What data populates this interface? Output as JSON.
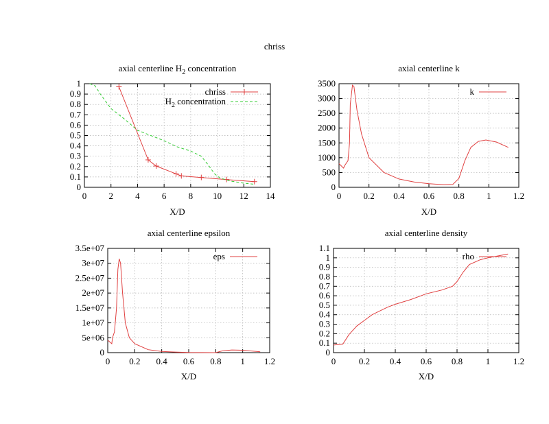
{
  "title": "chriss",
  "chart_data": [
    {
      "type": "line",
      "title_parts": [
        "axial centerline H",
        "2",
        " concentration"
      ],
      "xlabel": "X/D",
      "ylabel": "",
      "xlim": [
        0,
        14
      ],
      "ylim": [
        0,
        1
      ],
      "xticks": [
        0,
        2,
        4,
        6,
        8,
        10,
        12,
        14
      ],
      "xtick_labels": [
        "0",
        "2",
        "4",
        "6",
        "8",
        "10",
        "12",
        "14"
      ],
      "yticks": [
        0,
        0.1,
        0.2,
        0.3,
        0.4,
        0.5,
        0.6,
        0.7,
        0.8,
        0.9,
        1
      ],
      "ytick_labels": [
        "0",
        "0.1",
        "0.2",
        "0.3",
        "0.4",
        "0.5",
        "0.6",
        "0.7",
        "0.8",
        "0.9",
        "1"
      ],
      "grid": true,
      "legend": "top-right",
      "series": [
        {
          "name": "chriss",
          "label_parts": [
            "chriss"
          ],
          "color": "#e04040",
          "style": "linespoints",
          "marker": "plus",
          "x": [
            2.6,
            4.8,
            5.4,
            6.9,
            7.3,
            8.8,
            10.7,
            12.8
          ],
          "y": [
            0.97,
            0.265,
            0.205,
            0.13,
            0.11,
            0.095,
            0.075,
            0.055
          ]
        },
        {
          "name": "H2 concentration",
          "label_parts": [
            "H",
            "2",
            " concentration"
          ],
          "color": "#33cc33",
          "style": "dashed",
          "x": [
            0.4,
            0.8,
            1.2,
            2,
            3,
            4,
            5,
            6,
            7,
            8,
            8.8,
            9.3,
            9.8,
            10.2,
            11,
            12,
            12.8
          ],
          "y": [
            1,
            0.98,
            0.9,
            0.76,
            0.66,
            0.55,
            0.5,
            0.45,
            0.39,
            0.35,
            0.3,
            0.22,
            0.13,
            0.09,
            0.06,
            0.04,
            0.03
          ]
        }
      ]
    },
    {
      "type": "line",
      "title_parts": [
        "axial centerline k"
      ],
      "xlabel": "X/D",
      "ylabel": "",
      "xlim": [
        0,
        1.2
      ],
      "ylim": [
        0,
        3500
      ],
      "xticks": [
        0,
        0.2,
        0.4,
        0.6,
        0.8,
        1,
        1.2
      ],
      "xtick_labels": [
        "0",
        "0.2",
        "0.4",
        "0.6",
        "0.8",
        "1",
        "1.2"
      ],
      "yticks": [
        0,
        500,
        1000,
        1500,
        2000,
        2500,
        3000,
        3500
      ],
      "ytick_labels": [
        "0",
        "500",
        "1000",
        "1500",
        "2000",
        "2500",
        "3000",
        "3500"
      ],
      "grid": true,
      "legend": "top-right",
      "series": [
        {
          "name": "k",
          "label_parts": [
            "k"
          ],
          "color": "#e04040",
          "style": "line",
          "x": [
            0,
            0.03,
            0.04,
            0.06,
            0.07,
            0.075,
            0.09,
            0.1,
            0.12,
            0.15,
            0.2,
            0.3,
            0.4,
            0.5,
            0.6,
            0.7,
            0.76,
            0.8,
            0.84,
            0.88,
            0.93,
            0.98,
            1.05,
            1.13
          ],
          "y": [
            800,
            650,
            750,
            900,
            1500,
            2800,
            3450,
            3400,
            2600,
            1800,
            1000,
            500,
            280,
            180,
            120,
            90,
            100,
            300,
            900,
            1350,
            1550,
            1600,
            1530,
            1350
          ]
        }
      ]
    },
    {
      "type": "line",
      "title_parts": [
        "axial centerline epsilon"
      ],
      "xlabel": "X/D",
      "ylabel": "",
      "xlim": [
        0,
        1.2
      ],
      "ylim": [
        0,
        35000000
      ],
      "xticks": [
        0,
        0.2,
        0.4,
        0.6,
        0.8,
        1,
        1.2
      ],
      "xtick_labels": [
        "0",
        "0.2",
        "0.4",
        "0.6",
        "0.8",
        "1",
        "1.2"
      ],
      "yticks": [
        0,
        5000000,
        10000000,
        15000000,
        20000000,
        25000000,
        30000000,
        35000000
      ],
      "ytick_labels": [
        "0",
        "5e+06",
        "1e+07",
        "1.5e+07",
        "2e+07",
        "2.5e+07",
        "3e+07",
        "3.5e+07"
      ],
      "grid": true,
      "legend": "top-right",
      "series": [
        {
          "name": "eps",
          "label_parts": [
            "eps"
          ],
          "color": "#e04040",
          "style": "line",
          "x": [
            0,
            0.03,
            0.035,
            0.05,
            0.065,
            0.075,
            0.085,
            0.095,
            0.11,
            0.13,
            0.16,
            0.2,
            0.3,
            0.4,
            0.5,
            0.6,
            0.8,
            0.85,
            0.92,
            1.0,
            1.13
          ],
          "y": [
            4200000,
            3000000,
            5000000,
            7000000,
            15000000,
            28000000,
            31500000,
            30000000,
            20000000,
            10000000,
            5000000,
            3000000,
            1000000,
            400000,
            200000,
            50000,
            0,
            600000,
            900000,
            800000,
            300000
          ]
        }
      ]
    },
    {
      "type": "line",
      "title_parts": [
        "axial centerline density"
      ],
      "xlabel": "X/D",
      "ylabel": "",
      "xlim": [
        0,
        1.2
      ],
      "ylim": [
        0,
        1.1
      ],
      "xticks": [
        0,
        0.2,
        0.4,
        0.6,
        0.8,
        1,
        1.2
      ],
      "xtick_labels": [
        "0",
        "0.2",
        "0.4",
        "0.6",
        "0.8",
        "1",
        "1.2"
      ],
      "yticks": [
        0,
        0.1,
        0.2,
        0.3,
        0.4,
        0.5,
        0.6,
        0.7,
        0.8,
        0.9,
        1,
        1.1
      ],
      "ytick_labels": [
        "0",
        "0.1",
        "0.2",
        "0.3",
        "0.4",
        "0.5",
        "0.6",
        "0.7",
        "0.8",
        "0.9",
        "1",
        "1.1"
      ],
      "grid": true,
      "legend": "top-right",
      "series": [
        {
          "name": "rho",
          "label_parts": [
            "rho"
          ],
          "color": "#e04040",
          "style": "line",
          "x": [
            0,
            0.06,
            0.1,
            0.15,
            0.2,
            0.25,
            0.3,
            0.35,
            0.4,
            0.5,
            0.6,
            0.7,
            0.77,
            0.8,
            0.84,
            0.88,
            0.95,
            1,
            1.13
          ],
          "y": [
            0.08,
            0.09,
            0.19,
            0.28,
            0.34,
            0.4,
            0.44,
            0.48,
            0.51,
            0.56,
            0.62,
            0.66,
            0.7,
            0.75,
            0.85,
            0.93,
            0.98,
            1.0,
            1.04
          ]
        }
      ]
    }
  ]
}
